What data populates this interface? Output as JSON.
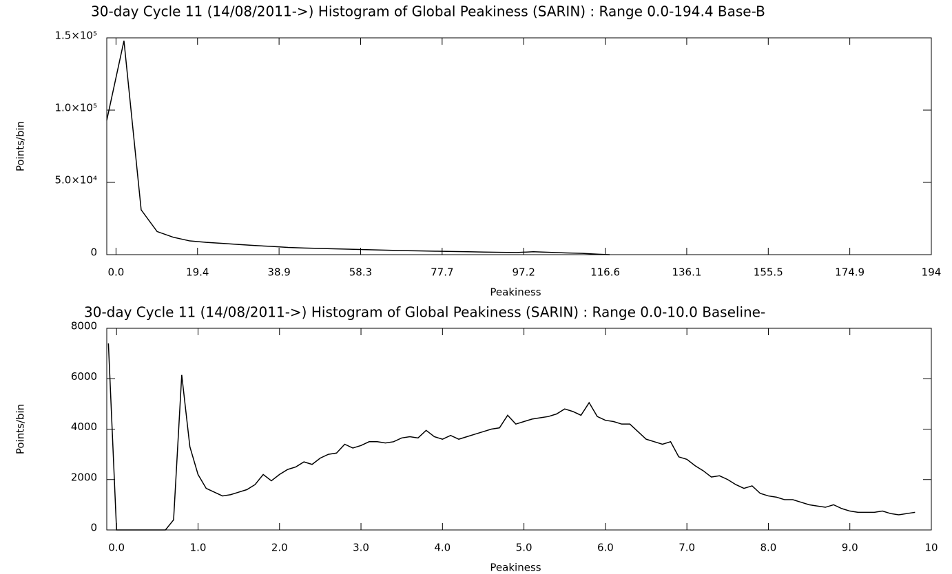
{
  "chart_data": [
    {
      "type": "line",
      "title": "30-day Cycle 11 (14/08/2011->) Histogram of Global Peakiness (SARIN) :  Range 0.0-194.4 Base-B",
      "x_label": "Peakiness",
      "y_label": "Points/bin",
      "color": "#000000",
      "x": [
        -2.2,
        1.9,
        6.0,
        9.8,
        13.7,
        17.6,
        21.5,
        25.4,
        29.3,
        33.2,
        37.1,
        41.0,
        44.9,
        48.8,
        52.7,
        56.6,
        60.5,
        64.4,
        68.3,
        72.2,
        76.1,
        80.0,
        83.9,
        87.8,
        91.7,
        95.6,
        99.5,
        103.4,
        107.3,
        111.2,
        115.1,
        117.7
      ],
      "values": [
        93000,
        148000,
        31000,
        16000,
        12000,
        9500,
        8500,
        7800,
        7000,
        6300,
        5700,
        5000,
        4600,
        4300,
        4000,
        3700,
        3400,
        3100,
        2800,
        2600,
        2400,
        2200,
        2000,
        1800,
        1600,
        1500,
        2000,
        1600,
        1200,
        900,
        300,
        0
      ],
      "xlim": [
        -2.2,
        194.4
      ],
      "xticks": [
        {
          "value": 0,
          "label": "0.0"
        },
        {
          "value": 19.44,
          "label": "19.4"
        },
        {
          "value": 38.88,
          "label": "38.9"
        },
        {
          "value": 58.32,
          "label": "58.3"
        },
        {
          "value": 77.76,
          "label": "77.7"
        },
        {
          "value": 97.2,
          "label": "97.2"
        },
        {
          "value": 116.64,
          "label": "116.6"
        },
        {
          "value": 136.08,
          "label": "136.1"
        },
        {
          "value": 155.52,
          "label": "155.5"
        },
        {
          "value": 174.96,
          "label": "174.9"
        },
        {
          "value": 194.4,
          "label": "194"
        }
      ],
      "ylim": [
        0,
        150000
      ],
      "yticks": [
        0,
        {
          "value": 50000,
          "label": "5.0×10⁴"
        },
        {
          "value": 100000,
          "label": "1.0×10⁵"
        },
        {
          "value": 150000,
          "label": "1.5×10⁵"
        }
      ]
    },
    {
      "type": "line",
      "title": "30-day Cycle 11 (14/08/2011->) Histogram of Global Peakiness (SARIN) :  Range 0.0-10.0 Baseline-",
      "x_label": "Peakiness",
      "y_label": "Points/bin",
      "color": "#000000",
      "x": [
        -0.1,
        0.0,
        0.1,
        0.2,
        0.3,
        0.4,
        0.5,
        0.6,
        0.7,
        0.8,
        0.9,
        1.0,
        1.1,
        1.2,
        1.3,
        1.4,
        1.5,
        1.6,
        1.7,
        1.8,
        1.9,
        2.0,
        2.1,
        2.2,
        2.3,
        2.4,
        2.5,
        2.6,
        2.7,
        2.8,
        2.9,
        3.0,
        3.1,
        3.2,
        3.3,
        3.4,
        3.5,
        3.6,
        3.7,
        3.8,
        3.9,
        4.0,
        4.1,
        4.2,
        4.3,
        4.4,
        4.5,
        4.6,
        4.7,
        4.8,
        4.9,
        5.0,
        5.1,
        5.2,
        5.3,
        5.4,
        5.5,
        5.6,
        5.7,
        5.8,
        5.9,
        6.0,
        6.1,
        6.2,
        6.3,
        6.4,
        6.5,
        6.6,
        6.7,
        6.8,
        6.9,
        7.0,
        7.1,
        7.2,
        7.3,
        7.4,
        7.5,
        7.6,
        7.7,
        7.8,
        7.9,
        8.0,
        8.1,
        8.2,
        8.3,
        8.4,
        8.5,
        8.6,
        8.7,
        8.8,
        8.9,
        9.0,
        9.1,
        9.2,
        9.3,
        9.4,
        9.5,
        9.6,
        9.7,
        9.8
      ],
      "values": [
        7400,
        0,
        0,
        0,
        0,
        0,
        0,
        0,
        400,
        6150,
        3300,
        2200,
        1650,
        1500,
        1350,
        1400,
        1500,
        1600,
        1800,
        2200,
        1950,
        2200,
        2400,
        2500,
        2700,
        2600,
        2850,
        3000,
        3050,
        3400,
        3250,
        3350,
        3500,
        3500,
        3450,
        3500,
        3650,
        3700,
        3650,
        3950,
        3700,
        3600,
        3750,
        3600,
        3700,
        3800,
        3900,
        4000,
        4050,
        4550,
        4200,
        4300,
        4400,
        4450,
        4500,
        4600,
        4800,
        4700,
        4550,
        5050,
        4500,
        4350,
        4300,
        4200,
        4200,
        3900,
        3600,
        3500,
        3400,
        3500,
        2900,
        2800,
        2550,
        2350,
        2100,
        2150,
        2000,
        1800,
        1650,
        1750,
        1450,
        1350,
        1300,
        1200,
        1200,
        1100,
        1000,
        950,
        900,
        1000,
        850,
        750,
        700,
        700,
        700,
        750,
        650,
        600,
        650,
        700
      ],
      "xlim": [
        -0.12,
        10
      ],
      "xticks": [
        {
          "value": 0,
          "label": "0.0"
        },
        {
          "value": 1,
          "label": "1.0"
        },
        {
          "value": 2,
          "label": "2.0"
        },
        {
          "value": 3,
          "label": "3.0"
        },
        {
          "value": 4,
          "label": "4.0"
        },
        {
          "value": 5,
          "label": "5.0"
        },
        {
          "value": 6,
          "label": "6.0"
        },
        {
          "value": 7,
          "label": "7.0"
        },
        {
          "value": 8,
          "label": "8.0"
        },
        {
          "value": 9,
          "label": "9.0"
        },
        10
      ],
      "ylim": [
        0,
        8000
      ],
      "yticks": [
        0,
        2000,
        4000,
        6000,
        8000
      ]
    }
  ]
}
